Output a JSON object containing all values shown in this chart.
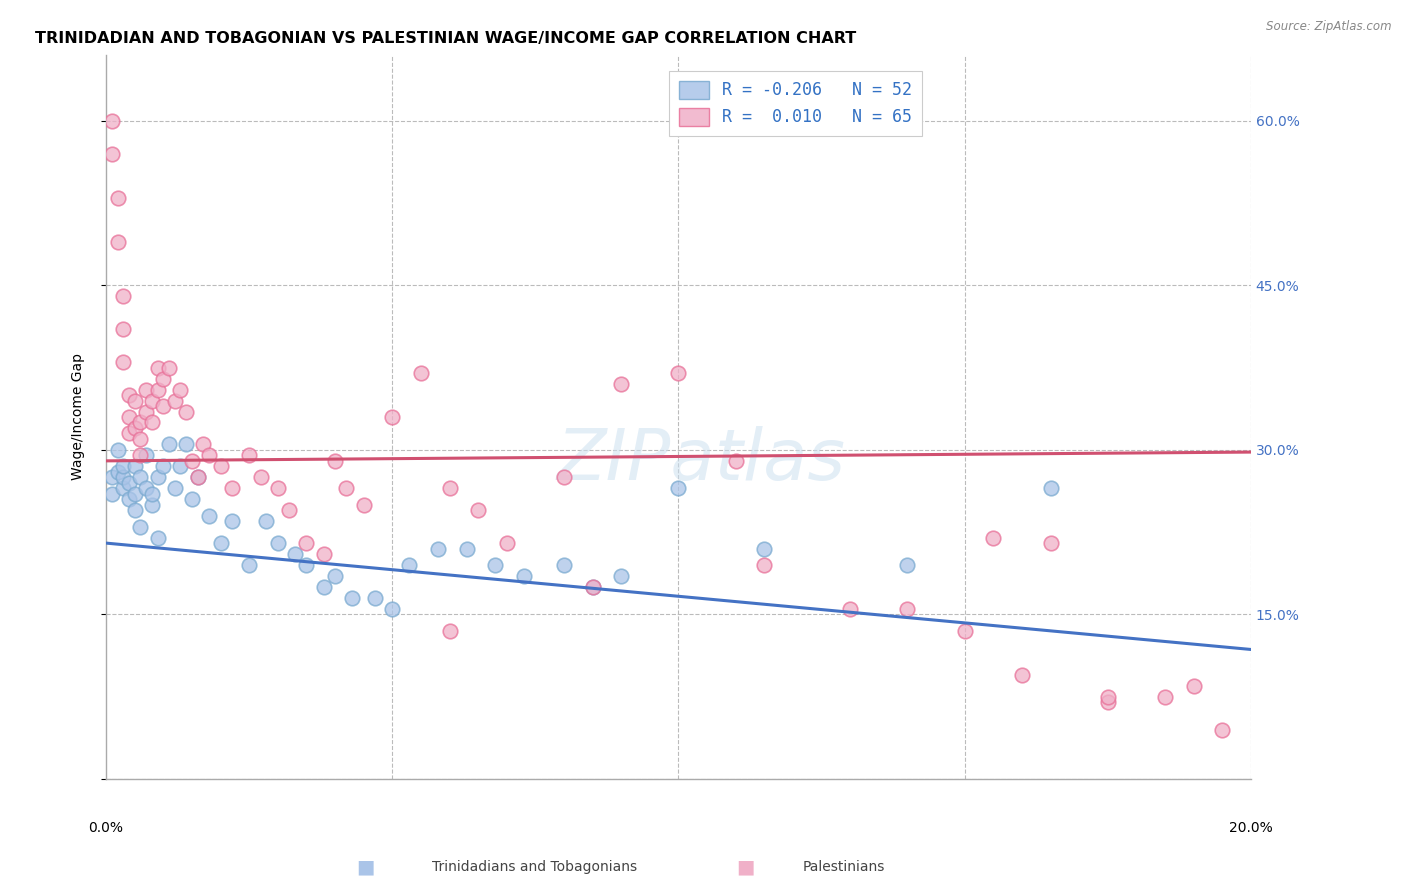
{
  "title": "TRINIDADIAN AND TOBAGONIAN VS PALESTINIAN WAGE/INCOME GAP CORRELATION CHART",
  "source": "Source: ZipAtlas.com",
  "ylabel": "Wage/Income Gap",
  "yticks": [
    0.0,
    0.15,
    0.3,
    0.45,
    0.6
  ],
  "ytick_labels": [
    "",
    "15.0%",
    "30.0%",
    "45.0%",
    "60.0%"
  ],
  "xlim": [
    0.0,
    0.2
  ],
  "ylim": [
    0.0,
    0.66
  ],
  "watermark": "ZIPatlas",
  "blue_color": "#aac4e8",
  "pink_color": "#f0b0c8",
  "blue_edge_color": "#7aaad0",
  "pink_edge_color": "#e87098",
  "blue_line_color": "#4472c4",
  "pink_line_color": "#d05070",
  "blue_scatter_x": [
    0.001,
    0.001,
    0.002,
    0.002,
    0.003,
    0.003,
    0.003,
    0.004,
    0.004,
    0.005,
    0.005,
    0.005,
    0.006,
    0.006,
    0.007,
    0.007,
    0.008,
    0.008,
    0.009,
    0.009,
    0.01,
    0.011,
    0.012,
    0.013,
    0.014,
    0.015,
    0.016,
    0.018,
    0.02,
    0.022,
    0.025,
    0.028,
    0.03,
    0.033,
    0.035,
    0.038,
    0.04,
    0.043,
    0.047,
    0.05,
    0.053,
    0.058,
    0.063,
    0.068,
    0.073,
    0.08,
    0.085,
    0.09,
    0.1,
    0.115,
    0.14,
    0.165
  ],
  "blue_scatter_y": [
    0.275,
    0.26,
    0.28,
    0.3,
    0.265,
    0.275,
    0.285,
    0.255,
    0.27,
    0.245,
    0.26,
    0.285,
    0.23,
    0.275,
    0.265,
    0.295,
    0.25,
    0.26,
    0.22,
    0.275,
    0.285,
    0.305,
    0.265,
    0.285,
    0.305,
    0.255,
    0.275,
    0.24,
    0.215,
    0.235,
    0.195,
    0.235,
    0.215,
    0.205,
    0.195,
    0.175,
    0.185,
    0.165,
    0.165,
    0.155,
    0.195,
    0.21,
    0.21,
    0.195,
    0.185,
    0.195,
    0.175,
    0.185,
    0.265,
    0.21,
    0.195,
    0.265
  ],
  "pink_scatter_x": [
    0.001,
    0.001,
    0.002,
    0.002,
    0.003,
    0.003,
    0.003,
    0.004,
    0.004,
    0.004,
    0.005,
    0.005,
    0.006,
    0.006,
    0.006,
    0.007,
    0.007,
    0.008,
    0.008,
    0.009,
    0.009,
    0.01,
    0.01,
    0.011,
    0.012,
    0.013,
    0.014,
    0.015,
    0.016,
    0.017,
    0.018,
    0.02,
    0.022,
    0.025,
    0.027,
    0.03,
    0.032,
    0.035,
    0.038,
    0.04,
    0.042,
    0.045,
    0.05,
    0.055,
    0.06,
    0.065,
    0.07,
    0.08,
    0.09,
    0.1,
    0.115,
    0.13,
    0.15,
    0.165,
    0.175,
    0.185,
    0.19,
    0.195,
    0.155,
    0.14,
    0.16,
    0.175,
    0.06,
    0.085,
    0.11
  ],
  "pink_scatter_y": [
    0.6,
    0.57,
    0.53,
    0.49,
    0.44,
    0.41,
    0.38,
    0.35,
    0.33,
    0.315,
    0.345,
    0.32,
    0.325,
    0.31,
    0.295,
    0.355,
    0.335,
    0.345,
    0.325,
    0.375,
    0.355,
    0.365,
    0.34,
    0.375,
    0.345,
    0.355,
    0.335,
    0.29,
    0.275,
    0.305,
    0.295,
    0.285,
    0.265,
    0.295,
    0.275,
    0.265,
    0.245,
    0.215,
    0.205,
    0.29,
    0.265,
    0.25,
    0.33,
    0.37,
    0.265,
    0.245,
    0.215,
    0.275,
    0.36,
    0.37,
    0.195,
    0.155,
    0.135,
    0.215,
    0.07,
    0.075,
    0.085,
    0.045,
    0.22,
    0.155,
    0.095,
    0.075,
    0.135,
    0.175,
    0.29
  ],
  "blue_line_x0": 0.0,
  "blue_line_x1": 0.2,
  "blue_line_y0": 0.215,
  "blue_line_y1": 0.118,
  "pink_line_x0": 0.0,
  "pink_line_x1": 0.2,
  "pink_line_y0": 0.29,
  "pink_line_y1": 0.298,
  "grid_color": "#bbbbbb",
  "background_color": "#ffffff",
  "title_fontsize": 11.5,
  "ylabel_fontsize": 10,
  "tick_fontsize": 10,
  "legend_fontsize": 12,
  "watermark_fontsize": 52,
  "legend_blue_label": "R = -0.206   N = 52",
  "legend_pink_label": "R =  0.010   N = 65",
  "bottom_label_blue": "Trinidadians and Tobagonians",
  "bottom_label_pink": "Palestinians",
  "source_text": "Source: ZipAtlas.com"
}
